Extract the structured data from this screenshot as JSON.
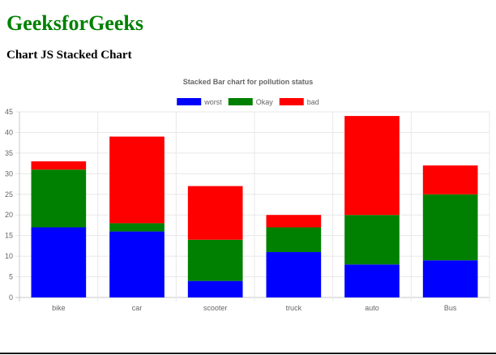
{
  "page": {
    "site_title": "GeeksforGeeks",
    "heading": "Chart JS Stacked Chart"
  },
  "chart_data": {
    "type": "bar",
    "stacked": true,
    "title": "Stacked Bar chart for pollution status",
    "xlabel": "",
    "ylabel": "",
    "categories": [
      "bike",
      "car",
      "scooter",
      "truck",
      "auto",
      "Bus"
    ],
    "series": [
      {
        "name": "worst",
        "color": "#0000ff",
        "values": [
          17,
          16,
          4,
          11,
          8,
          9
        ]
      },
      {
        "name": "Okay",
        "color": "#008000",
        "values": [
          14,
          2,
          10,
          6,
          12,
          16
        ]
      },
      {
        "name": "bad",
        "color": "#ff0000",
        "values": [
          2,
          21,
          13,
          3,
          24,
          7
        ]
      }
    ],
    "ylim": [
      0,
      45
    ],
    "yticks": [
      0,
      5,
      10,
      15,
      20,
      25,
      30,
      35,
      40,
      45
    ],
    "grid": true,
    "legend_position": "top"
  }
}
